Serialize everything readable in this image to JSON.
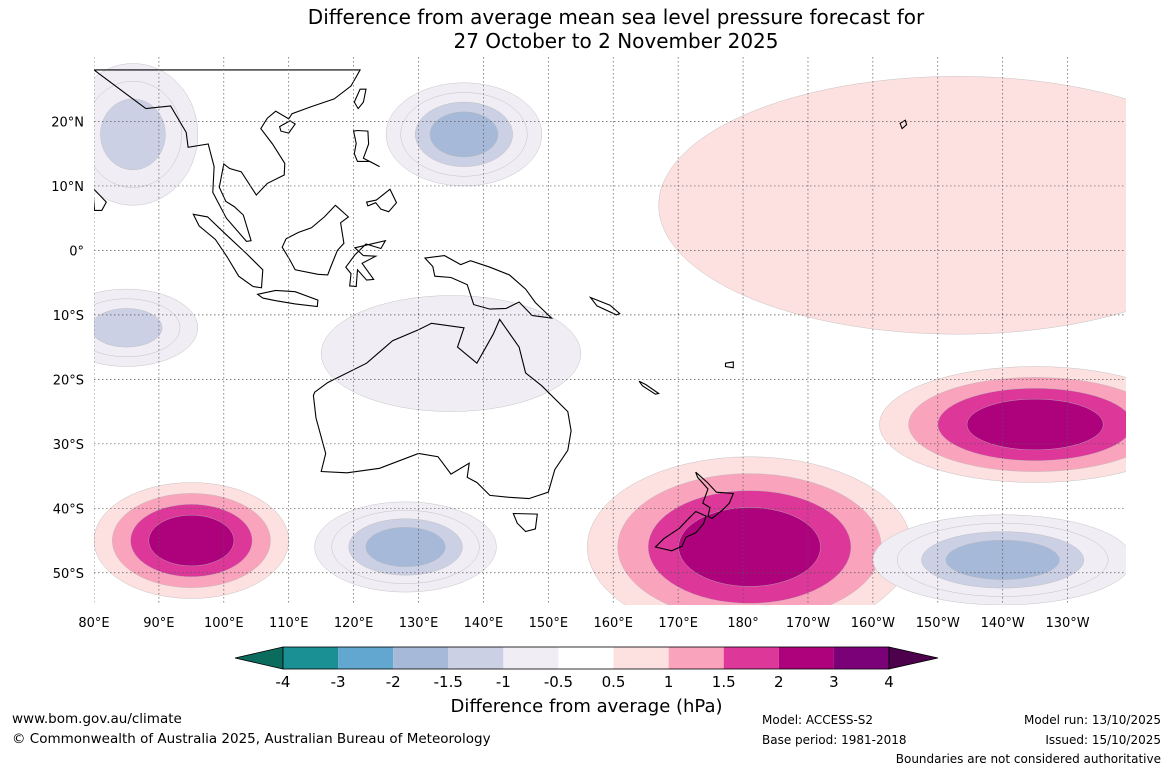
{
  "chart_data": {
    "type": "heatmap",
    "title": "Difference from average mean sea level pressure forecast for",
    "subtitle": "27 October to 2 November 2025",
    "x_ticks": [
      {
        "lon": 80,
        "label": "80°E"
      },
      {
        "lon": 90,
        "label": "90°E"
      },
      {
        "lon": 100,
        "label": "100°E"
      },
      {
        "lon": 110,
        "label": "110°E"
      },
      {
        "lon": 120,
        "label": "120°E"
      },
      {
        "lon": 130,
        "label": "130°E"
      },
      {
        "lon": 140,
        "label": "140°E"
      },
      {
        "lon": 150,
        "label": "150°E"
      },
      {
        "lon": 160,
        "label": "160°E"
      },
      {
        "lon": 170,
        "label": "170°E"
      },
      {
        "lon": 180,
        "label": "180°"
      },
      {
        "lon": 190,
        "label": "170°W"
      },
      {
        "lon": 200,
        "label": "160°W"
      },
      {
        "lon": 210,
        "label": "150°W"
      },
      {
        "lon": 220,
        "label": "140°W"
      },
      {
        "lon": 230,
        "label": "130°W"
      }
    ],
    "y_ticks": [
      {
        "lat": 20,
        "label": "20°N"
      },
      {
        "lat": 10,
        "label": "10°N"
      },
      {
        "lat": 0,
        "label": "0°"
      },
      {
        "lat": -10,
        "label": "10°S"
      },
      {
        "lat": -20,
        "label": "20°S"
      },
      {
        "lat": -30,
        "label": "30°S"
      },
      {
        "lat": -40,
        "label": "40°S"
      },
      {
        "lat": -50,
        "label": "50°S"
      }
    ],
    "lon_range": [
      80,
      239
    ],
    "lat_range": [
      -55,
      30
    ],
    "grid": true,
    "colorbar": {
      "label": "Difference from average (hPa)",
      "levels": [
        "-4",
        "-3",
        "-2",
        "-1.5",
        "-1",
        "-0.5",
        "0.5",
        "1",
        "1.5",
        "2",
        "3",
        "4"
      ],
      "colors": [
        "#0b6b5c",
        "#1a8f94",
        "#62a7cf",
        "#a6b9d8",
        "#ccd0e4",
        "#f0edf5",
        "#ffffff",
        "#fde0e0",
        "#f9a3bd",
        "#dc3799",
        "#ae027d",
        "#7a0177",
        "#4d004b"
      ]
    },
    "anomalies": [
      {
        "lon": 95,
        "lat": -45,
        "rx": 15,
        "ry": 9,
        "levels": [
          0.5,
          1,
          1.5,
          2
        ]
      },
      {
        "lon": 128,
        "lat": -46,
        "rx": 14,
        "ry": 7,
        "levels": [
          -0.5,
          -1,
          -1.5,
          -2
        ]
      },
      {
        "lon": 137,
        "lat": 18,
        "rx": 12,
        "ry": 8,
        "levels": [
          -0.5,
          -1,
          -1.5,
          -2
        ]
      },
      {
        "lon": 85,
        "lat": -12,
        "rx": 11,
        "ry": 6,
        "levels": [
          -0.5,
          -1,
          -1.5
        ]
      },
      {
        "lon": 86,
        "lat": 18,
        "rx": 10,
        "ry": 11,
        "levels": [
          -0.5,
          -1,
          -1.5
        ]
      },
      {
        "lon": 135,
        "lat": -16,
        "rx": 20,
        "ry": 9,
        "levels": [
          -0.5
        ]
      },
      {
        "lon": 181,
        "lat": -46,
        "rx": 25,
        "ry": 14,
        "levels": [
          0.5,
          1,
          1.5,
          2
        ]
      },
      {
        "lon": 225,
        "lat": -27,
        "rx": 24,
        "ry": 9,
        "levels": [
          0.5,
          1,
          1.5,
          2
        ]
      },
      {
        "lon": 213,
        "lat": 7,
        "rx": 46,
        "ry": 20,
        "levels": [
          0.5
        ]
      },
      {
        "lon": 220,
        "lat": -48,
        "rx": 20,
        "ry": 7,
        "levels": [
          -0.5,
          -1,
          -1.5,
          -2
        ]
      }
    ]
  },
  "footer": {
    "url": "www.bom.gov.au/climate",
    "copyright": "© Commonwealth of Australia 2025, Australian Bureau of Meteorology",
    "model": "Model: ACCESS-S2",
    "base_period": "Base period: 1981-2018",
    "model_run": "Model run: 13/10/2025",
    "issued": "Issued: 15/10/2025",
    "disclaimer": "Boundaries are not considered authoritative"
  }
}
